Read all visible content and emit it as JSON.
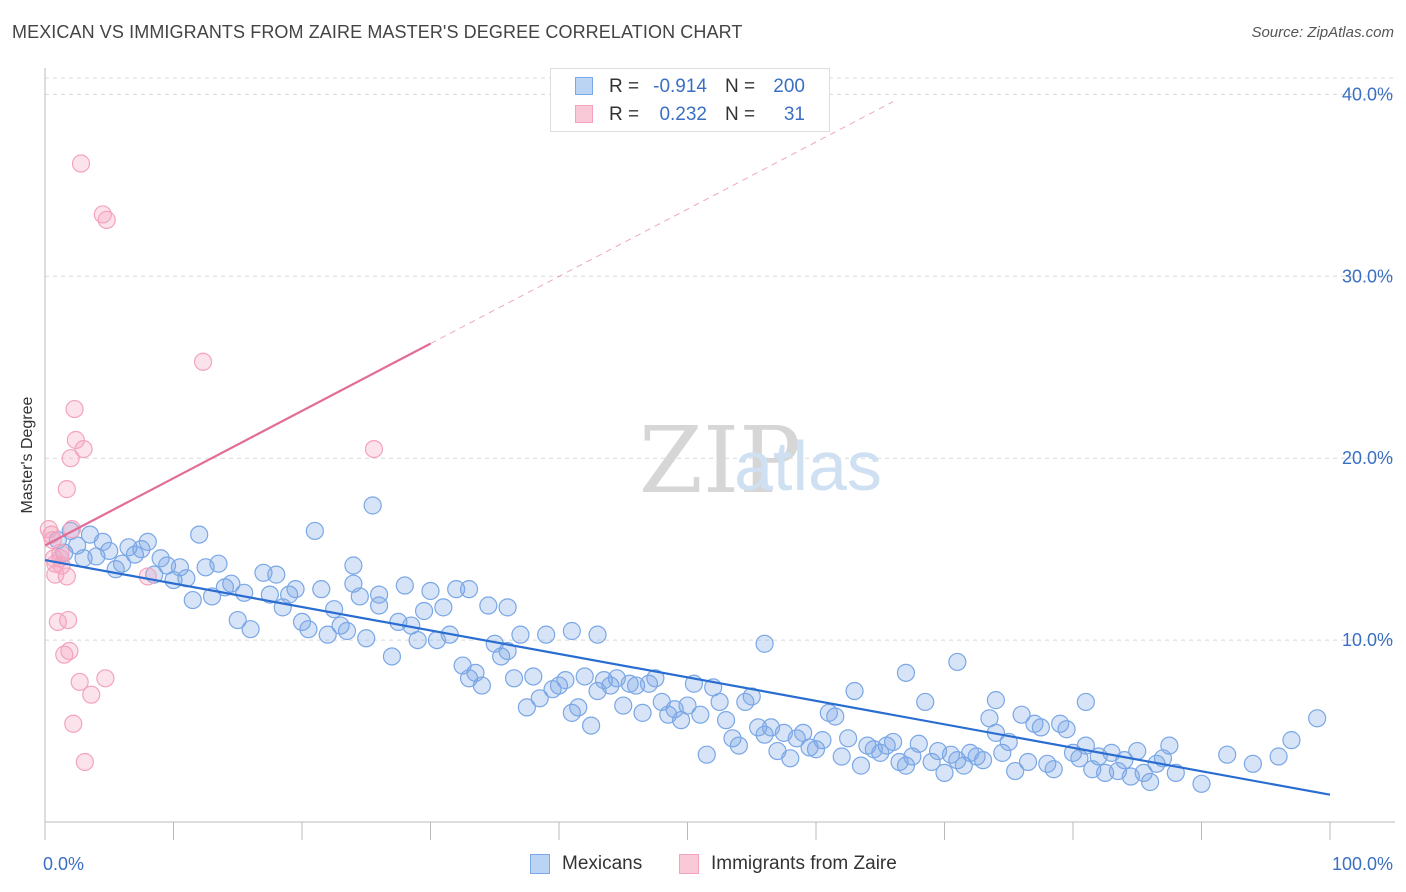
{
  "header": {
    "title": "MEXICAN VS IMMIGRANTS FROM ZAIRE MASTER'S DEGREE CORRELATION CHART",
    "source": "Source: ZipAtlas.com"
  },
  "watermark": {
    "zip": "ZIP",
    "atlas": "atlas"
  },
  "legend": {
    "r_label": "R =",
    "n_label": "N =",
    "rows": [
      {
        "r_value": "-0.914",
        "n_value": "200"
      },
      {
        "r_value": "0.232",
        "n_value": "31"
      }
    ]
  },
  "chart_data": {
    "type": "scatter",
    "title": "MEXICAN VS IMMIGRANTS FROM ZAIRE MASTER'S DEGREE CORRELATION CHART",
    "xlabel": "",
    "ylabel": "Master's Degree",
    "xlim": [
      0,
      100
    ],
    "ylim": [
      0,
      42
    ],
    "x_tick_labels": [
      "0.0%",
      "100.0%"
    ],
    "y_ticks": [
      10,
      20,
      30,
      40
    ],
    "y_tick_labels": [
      "10.0%",
      "20.0%",
      "30.0%",
      "40.0%"
    ],
    "grid": "horizontal dashed",
    "legend_position": "top-center and bottom-center",
    "series": [
      {
        "name": "Mexicans",
        "color": "#7aa7e6",
        "line_color": "#2a6dd1",
        "r": -0.914,
        "n": 200,
        "trend": {
          "x": [
            0,
            100
          ],
          "y": [
            14.4,
            1.5
          ]
        },
        "points": [
          [
            1,
            15.5
          ],
          [
            1.5,
            14.8
          ],
          [
            2,
            16
          ],
          [
            2.5,
            15.2
          ],
          [
            3,
            14.5
          ],
          [
            3.5,
            15.8
          ],
          [
            4,
            14.6
          ],
          [
            4.5,
            15.4
          ],
          [
            5,
            14.9
          ],
          [
            5.5,
            13.9
          ],
          [
            6,
            14.2
          ],
          [
            6.5,
            15.1
          ],
          [
            7,
            14.7
          ],
          [
            7.5,
            15
          ],
          [
            8,
            15.4
          ],
          [
            8.5,
            13.6
          ],
          [
            9,
            14.5
          ],
          [
            9.5,
            14.1
          ],
          [
            10,
            13.3
          ],
          [
            10.5,
            14
          ],
          [
            11,
            13.4
          ],
          [
            11.5,
            12.2
          ],
          [
            12,
            15.8
          ],
          [
            12.5,
            14
          ],
          [
            13,
            12.4
          ],
          [
            13.5,
            14.2
          ],
          [
            14,
            12.9
          ],
          [
            14.5,
            13.1
          ],
          [
            15,
            11.1
          ],
          [
            15.5,
            12.6
          ],
          [
            16,
            10.6
          ],
          [
            17,
            13.7
          ],
          [
            17.5,
            12.5
          ],
          [
            18,
            13.6
          ],
          [
            18.5,
            11.8
          ],
          [
            19,
            12.5
          ],
          [
            19.5,
            12.8
          ],
          [
            20,
            11
          ],
          [
            20.5,
            10.6
          ],
          [
            21,
            16
          ],
          [
            21.5,
            12.8
          ],
          [
            22,
            10.3
          ],
          [
            22.5,
            11.7
          ],
          [
            23,
            10.8
          ],
          [
            23.5,
            10.5
          ],
          [
            24,
            14.1
          ],
          [
            24.5,
            12.4
          ],
          [
            25,
            10.1
          ],
          [
            25.5,
            17.4
          ],
          [
            26,
            11.9
          ],
          [
            27,
            9.1
          ],
          [
            27.5,
            11
          ],
          [
            28,
            13
          ],
          [
            28.5,
            10.8
          ],
          [
            29,
            10
          ],
          [
            29.5,
            11.6
          ],
          [
            30,
            12.7
          ],
          [
            30.5,
            10
          ],
          [
            31,
            11.8
          ],
          [
            31.5,
            10.3
          ],
          [
            32,
            12.8
          ],
          [
            32.5,
            8.6
          ],
          [
            33,
            7.9
          ],
          [
            33.5,
            8.2
          ],
          [
            34,
            7.5
          ],
          [
            34.5,
            11.9
          ],
          [
            35,
            9.8
          ],
          [
            35.5,
            9.1
          ],
          [
            36,
            9.4
          ],
          [
            36.5,
            7.9
          ],
          [
            37,
            10.3
          ],
          [
            37.5,
            6.3
          ],
          [
            38,
            8
          ],
          [
            38.5,
            6.8
          ],
          [
            39,
            10.3
          ],
          [
            39.5,
            7.3
          ],
          [
            40,
            7.5
          ],
          [
            40.5,
            7.8
          ],
          [
            41,
            6
          ],
          [
            41.5,
            6.3
          ],
          [
            42,
            8
          ],
          [
            42.5,
            5.3
          ],
          [
            43,
            7.2
          ],
          [
            43.5,
            7.8
          ],
          [
            44,
            7.5
          ],
          [
            44.5,
            7.9
          ],
          [
            45,
            6.4
          ],
          [
            45.5,
            7.6
          ],
          [
            46,
            7.5
          ],
          [
            46.5,
            6
          ],
          [
            47,
            7.6
          ],
          [
            47.5,
            7.9
          ],
          [
            48,
            6.6
          ],
          [
            48.5,
            5.9
          ],
          [
            49,
            6.2
          ],
          [
            49.5,
            5.6
          ],
          [
            50,
            6.4
          ],
          [
            50.5,
            7.6
          ],
          [
            51,
            5.9
          ],
          [
            51.5,
            3.7
          ],
          [
            52,
            7.4
          ],
          [
            52.5,
            6.6
          ],
          [
            53,
            5.6
          ],
          [
            53.5,
            4.6
          ],
          [
            54,
            4.2
          ],
          [
            54.5,
            6.6
          ],
          [
            55,
            6.9
          ],
          [
            55.5,
            5.2
          ],
          [
            56,
            4.8
          ],
          [
            56.5,
            5.2
          ],
          [
            57,
            3.9
          ],
          [
            57.5,
            4.9
          ],
          [
            58,
            3.5
          ],
          [
            58.5,
            4.6
          ],
          [
            59,
            4.9
          ],
          [
            59.5,
            4.1
          ],
          [
            60,
            4
          ],
          [
            60.5,
            4.5
          ],
          [
            61,
            6
          ],
          [
            61.5,
            5.8
          ],
          [
            62,
            3.6
          ],
          [
            62.5,
            4.6
          ],
          [
            63,
            7.2
          ],
          [
            63.5,
            3.1
          ],
          [
            64,
            4.2
          ],
          [
            64.5,
            4
          ],
          [
            65,
            3.8
          ],
          [
            65.5,
            4.2
          ],
          [
            66,
            4.4
          ],
          [
            66.5,
            3.3
          ],
          [
            67,
            3.1
          ],
          [
            67.5,
            3.6
          ],
          [
            68,
            4.3
          ],
          [
            68.5,
            6.6
          ],
          [
            69,
            3.3
          ],
          [
            69.5,
            3.9
          ],
          [
            70,
            2.7
          ],
          [
            70.5,
            3.7
          ],
          [
            71,
            3.4
          ],
          [
            71.5,
            3.1
          ],
          [
            72,
            3.8
          ],
          [
            72.5,
            3.6
          ],
          [
            73,
            3.4
          ],
          [
            73.5,
            5.7
          ],
          [
            74,
            4.9
          ],
          [
            74.5,
            3.8
          ],
          [
            75,
            4.4
          ],
          [
            75.5,
            2.8
          ],
          [
            76,
            5.9
          ],
          [
            76.5,
            3.3
          ],
          [
            77,
            5.4
          ],
          [
            77.5,
            5.2
          ],
          [
            78,
            3.2
          ],
          [
            78.5,
            2.9
          ],
          [
            79,
            5.4
          ],
          [
            79.5,
            5.1
          ],
          [
            80,
            3.8
          ],
          [
            80.5,
            3.5
          ],
          [
            81,
            4.2
          ],
          [
            81.5,
            2.9
          ],
          [
            82,
            3.6
          ],
          [
            82.5,
            2.7
          ],
          [
            83,
            3.8
          ],
          [
            83.5,
            2.8
          ],
          [
            84,
            3.4
          ],
          [
            84.5,
            2.5
          ],
          [
            85,
            3.9
          ],
          [
            85.5,
            2.7
          ],
          [
            86,
            2.2
          ],
          [
            86.5,
            3.2
          ],
          [
            87,
            3.5
          ],
          [
            87.5,
            4.2
          ],
          [
            88,
            2.7
          ],
          [
            90,
            2.1
          ],
          [
            99,
            5.7
          ],
          [
            97,
            4.5
          ],
          [
            96,
            3.6
          ],
          [
            94,
            3.2
          ],
          [
            92,
            3.7
          ],
          [
            74,
            6.7
          ],
          [
            81,
            6.6
          ],
          [
            67,
            8.2
          ],
          [
            71,
            8.8
          ],
          [
            56,
            9.8
          ],
          [
            41,
            10.5
          ],
          [
            43,
            10.3
          ],
          [
            24,
            13.1
          ],
          [
            33,
            12.8
          ],
          [
            36,
            11.8
          ],
          [
            26,
            12.5
          ]
        ]
      },
      {
        "name": "Immigrants from Zaire",
        "color": "#f4a3bd",
        "line_color": "#e26c97",
        "r": 0.232,
        "n": 31,
        "trend": {
          "x": [
            0,
            30
          ],
          "y": [
            15.2,
            26.3
          ]
        },
        "trend_extension": {
          "x": [
            30,
            66
          ],
          "y": [
            26.3,
            39.6
          ]
        },
        "points": [
          [
            0.3,
            16.1
          ],
          [
            0.5,
            15.8
          ],
          [
            0.6,
            15.5
          ],
          [
            0.7,
            14.5
          ],
          [
            0.8,
            14.2
          ],
          [
            0.8,
            13.6
          ],
          [
            1,
            11
          ],
          [
            1.2,
            14.8
          ],
          [
            1.3,
            14.1
          ],
          [
            1.5,
            9.2
          ],
          [
            1.7,
            13.5
          ],
          [
            1.7,
            18.3
          ],
          [
            1.8,
            11.1
          ],
          [
            1.9,
            9.4
          ],
          [
            2,
            20
          ],
          [
            2.1,
            16.1
          ],
          [
            2.2,
            5.4
          ],
          [
            2.3,
            22.7
          ],
          [
            2.4,
            21
          ],
          [
            2.7,
            7.7
          ],
          [
            3,
            20.5
          ],
          [
            3.1,
            3.3
          ],
          [
            3.6,
            7
          ],
          [
            4.5,
            33.4
          ],
          [
            4.7,
            7.9
          ],
          [
            4.8,
            33.1
          ],
          [
            2.8,
            36.2
          ],
          [
            12.3,
            25.3
          ],
          [
            25.6,
            20.5
          ],
          [
            8,
            13.5
          ],
          [
            1.2,
            14.5
          ]
        ]
      }
    ]
  },
  "bottom_legend": {
    "items": [
      "Mexicans",
      "Immigrants from Zaire"
    ]
  }
}
